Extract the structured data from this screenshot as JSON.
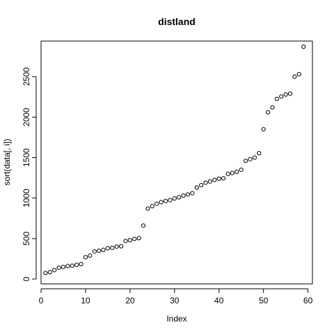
{
  "chart_data": {
    "type": "scatter",
    "title": "distland",
    "xlabel": "Index",
    "ylabel": "sort(data[, i])",
    "xlim": [
      0,
      61
    ],
    "ylim": [
      -60,
      2940
    ],
    "x_ticks": [
      0,
      10,
      20,
      30,
      40,
      50,
      60
    ],
    "y_ticks": [
      0,
      500,
      1000,
      1500,
      2000,
      2500
    ],
    "grid": false,
    "legend": "none",
    "marker": "open-circle",
    "series": [
      {
        "x": [
          1,
          2,
          3,
          4,
          5,
          6,
          7,
          8,
          9,
          10,
          11,
          12,
          13,
          14,
          15,
          16,
          17,
          18,
          19,
          20,
          21,
          22,
          23,
          24,
          25,
          26,
          27,
          28,
          29,
          30,
          31,
          32,
          33,
          34,
          35,
          36,
          37,
          38,
          39,
          40,
          41,
          42,
          43,
          44,
          45,
          46,
          47,
          48,
          49,
          50,
          51,
          52,
          53,
          54,
          55,
          56,
          57,
          58,
          59
        ],
        "values": [
          75,
          85,
          110,
          140,
          150,
          160,
          165,
          175,
          185,
          270,
          290,
          340,
          350,
          360,
          380,
          385,
          400,
          405,
          470,
          480,
          495,
          505,
          660,
          870,
          900,
          930,
          950,
          965,
          975,
          995,
          1010,
          1030,
          1045,
          1060,
          1130,
          1160,
          1190,
          1205,
          1225,
          1240,
          1245,
          1300,
          1310,
          1325,
          1350,
          1460,
          1480,
          1500,
          1555,
          1850,
          2060,
          2120,
          2225,
          2255,
          2280,
          2290,
          2500,
          2530,
          2870
        ]
      }
    ]
  }
}
